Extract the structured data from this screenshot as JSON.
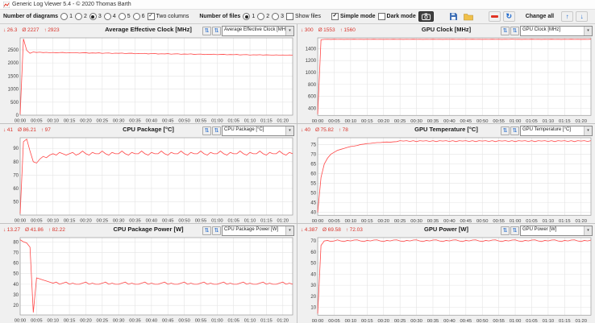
{
  "window": {
    "title": "Generic Log Viewer 5.4 - © 2020 Thomas Barth"
  },
  "colors": {
    "line_red": "#ff4747",
    "stat_red": "#d9342b",
    "arrow_blue": "#1a66cc"
  },
  "icons": {
    "min_glyph": "↓",
    "avg_glyph": "Ø",
    "max_glyph": "↑",
    "up_glyph": "↑",
    "down_glyph": "↓",
    "swap_glyph": "⇅",
    "refresh_glyph": "↻",
    "dropdown_arrow": "▾",
    "check_glyph": "✓",
    "camera": "camera-icon",
    "save": "save-icon",
    "folder": "folder-icon",
    "line_color": "red-line-icon"
  },
  "toolbar": {
    "diagrams_label": "Number of diagrams",
    "diagram_options": [
      "1",
      "2",
      "3",
      "4",
      "5",
      "6"
    ],
    "diagrams_selected": "3",
    "two_columns_label": "Two columns",
    "two_columns_checked": true,
    "files_label": "Number of files",
    "file_options": [
      "1",
      "2",
      "3"
    ],
    "files_selected": "1",
    "show_files_label": "Show files",
    "show_files_checked": false,
    "simple_mode_label": "Simple mode",
    "simple_mode_checked": true,
    "dark_mode_label": "Dark mode",
    "dark_mode_checked": false,
    "change_all_label": "Change all"
  },
  "x_axis_labels": [
    "00:00",
    "00:05",
    "00:10",
    "00:15",
    "00:20",
    "00:25",
    "00:30",
    "00:35",
    "00:40",
    "00:45",
    "00:50",
    "00:55",
    "01:00",
    "01:05",
    "01:10",
    "01:15",
    "01:20"
  ],
  "chart_data": [
    {
      "type": "line",
      "title": "Average Effective Clock [MHz]",
      "dropdown": "Average Effective Clock [MHz]",
      "min": "26.3",
      "avg": "2227",
      "max": "2923",
      "ylim": [
        0,
        2960
      ],
      "y_ticks": [
        0,
        500,
        1000,
        1500,
        2000,
        2500
      ],
      "values": [
        26,
        2923,
        2480,
        2370,
        2420,
        2400,
        2412,
        2396,
        2405,
        2390,
        2402,
        2388,
        2398,
        2403,
        2382,
        2394,
        2386,
        2397,
        2378,
        2388,
        2392,
        2372,
        2384,
        2376,
        2388,
        2366,
        2378,
        2382,
        2362,
        2374,
        2368,
        2378,
        2358,
        2368,
        2372,
        2352,
        2362,
        2356,
        2366,
        2346,
        2358,
        2362,
        2342,
        2352,
        2346,
        2356,
        2336,
        2346,
        2350,
        2332,
        2342,
        2336,
        2346,
        2326,
        2336,
        2340,
        2322,
        2332,
        2326,
        2336,
        2316,
        2326,
        2330,
        2312,
        2322,
        2316,
        2326,
        2306,
        2316,
        2320,
        2302,
        2312,
        2306,
        2316,
        2300,
        2310,
        2304,
        2298,
        2308,
        2298,
        2304,
        2294,
        2304,
        2298
      ]
    },
    {
      "type": "line",
      "title": "GPU Clock [MHz]",
      "dropdown": "GPU Clock [MHz]",
      "min": "300",
      "avg": "1553",
      "max": "1560",
      "ylim": [
        280,
        1580
      ],
      "y_ticks": [
        400,
        600,
        800,
        1000,
        1200,
        1400
      ],
      "values": [
        300,
        1548,
        1555,
        1556,
        1554,
        1557,
        1555,
        1556,
        1554,
        1556,
        1555,
        1557,
        1555,
        1556,
        1554,
        1556,
        1555,
        1557,
        1555,
        1556,
        1554,
        1556,
        1555,
        1557,
        1555,
        1556,
        1554,
        1556,
        1555,
        1557,
        1555,
        1556,
        1554,
        1556,
        1555,
        1557,
        1555,
        1556,
        1554,
        1556,
        1555,
        1557,
        1555,
        1556,
        1554,
        1556,
        1555,
        1557,
        1555,
        1556,
        1554,
        1556,
        1555,
        1557,
        1555,
        1556,
        1554,
        1556,
        1555,
        1557,
        1555,
        1556,
        1554,
        1556,
        1555,
        1557,
        1555,
        1556,
        1554,
        1556,
        1555,
        1557,
        1555,
        1556,
        1554,
        1556,
        1555,
        1557,
        1555,
        1556,
        1554,
        1556,
        1555,
        1557
      ]
    },
    {
      "type": "line",
      "title": "CPU Package [°C]",
      "dropdown": "CPU Package [°C]",
      "min": "41",
      "avg": "86.21",
      "max": "97",
      "ylim": [
        40,
        98
      ],
      "y_ticks": [
        50,
        60,
        70,
        80,
        90
      ],
      "values": [
        41,
        95,
        97,
        88,
        80,
        79,
        82,
        84,
        83,
        85,
        86,
        85,
        87,
        86,
        85,
        86,
        87,
        85,
        86,
        88,
        86,
        85,
        87,
        86,
        86,
        88,
        86,
        85,
        87,
        86,
        86,
        88,
        86,
        85,
        87,
        86,
        86,
        88,
        86,
        85,
        87,
        86,
        86,
        88,
        86,
        85,
        87,
        86,
        86,
        88,
        86,
        85,
        87,
        86,
        86,
        88,
        86,
        85,
        87,
        86,
        86,
        88,
        86,
        85,
        87,
        86,
        86,
        88,
        86,
        85,
        87,
        86,
        86,
        88,
        86,
        85,
        87,
        86,
        86,
        88,
        86,
        85,
        87,
        86
      ]
    },
    {
      "type": "line",
      "title": "GPU Temperature [°C]",
      "dropdown": "GPU Temperature [°C]",
      "min": "40",
      "avg": "75.82",
      "max": "78",
      "ylim": [
        38.5,
        78.5
      ],
      "y_ticks": [
        40,
        45,
        50,
        55,
        60,
        65,
        70,
        75
      ],
      "values": [
        40,
        58,
        65,
        68,
        70,
        71,
        72,
        72.5,
        73,
        73.5,
        74,
        74.2,
        74.5,
        75,
        75.2,
        75.5,
        75.6,
        75.8,
        76,
        76,
        76.2,
        76.3,
        76.2,
        76.4,
        76.5,
        77,
        76.8,
        77,
        76.6,
        77,
        76.5,
        77,
        76.8,
        77,
        76.6,
        77,
        76.5,
        77,
        76.8,
        77,
        76.6,
        77,
        76.5,
        77,
        76.8,
        77,
        76.6,
        77,
        76.5,
        77,
        76.8,
        77,
        76.6,
        77,
        76.5,
        77,
        76.8,
        77,
        76.6,
        77,
        76.5,
        77,
        76.8,
        77,
        76.6,
        77,
        76.5,
        77,
        76.8,
        77,
        76.6,
        77,
        76.5,
        77,
        76.8,
        77,
        76.6,
        77,
        76.5,
        77,
        76.8,
        77,
        76.6,
        77
      ]
    },
    {
      "type": "line",
      "title": "CPU Package Power [W]",
      "dropdown": "CPU Package Power [W]",
      "min": "13.27",
      "avg": "41.86",
      "max": "82.22",
      "ylim": [
        11,
        84
      ],
      "y_ticks": [
        20,
        30,
        40,
        50,
        60,
        70,
        80
      ],
      "values": [
        82,
        80,
        79,
        75,
        13.3,
        46,
        45,
        44,
        43,
        42,
        41,
        42,
        40,
        41,
        42,
        40,
        41,
        40,
        40,
        41,
        42,
        40,
        41,
        40,
        40,
        41,
        42,
        40,
        41,
        40,
        40,
        41,
        42,
        40,
        41,
        40,
        40,
        41,
        42,
        40,
        41,
        40,
        40,
        41,
        42,
        40,
        41,
        40,
        40,
        41,
        42,
        40,
        41,
        40,
        40,
        41,
        42,
        40,
        41,
        40,
        40,
        41,
        42,
        40,
        41,
        40,
        40,
        41,
        42,
        40,
        41,
        40,
        40,
        41,
        42,
        40,
        41,
        40,
        40,
        41,
        42,
        40,
        41,
        40
      ]
    },
    {
      "type": "line",
      "title": "GPU Power [W]",
      "dropdown": "GPU Power [W]",
      "min": "4.387",
      "avg": "69.58",
      "max": "72.03",
      "ylim": [
        3,
        73
      ],
      "y_ticks": [
        10,
        20,
        30,
        40,
        50,
        60,
        70
      ],
      "values": [
        4.4,
        66,
        70,
        70.5,
        69.5,
        70,
        71,
        70,
        69.5,
        70.5,
        70,
        70.8,
        71,
        70,
        69.5,
        70.5,
        70,
        70.8,
        71,
        70,
        69.5,
        70.5,
        70,
        70.8,
        71,
        70,
        69.5,
        70.5,
        70,
        70.8,
        71,
        70,
        69.5,
        70.5,
        70,
        70.8,
        71,
        70,
        69.5,
        70.5,
        70,
        70.8,
        71,
        70,
        69.5,
        70.5,
        70,
        70.8,
        71,
        70,
        69.5,
        70.5,
        70,
        70.8,
        71,
        70,
        69.5,
        70.5,
        70,
        70.8,
        71,
        70,
        69.5,
        70.5,
        70,
        70.8,
        71,
        70,
        69.5,
        70.5,
        70,
        70.8,
        71,
        70,
        69.5,
        70.5,
        70,
        70.8,
        71,
        70,
        69.5,
        70.5,
        70,
        70.8
      ]
    }
  ]
}
